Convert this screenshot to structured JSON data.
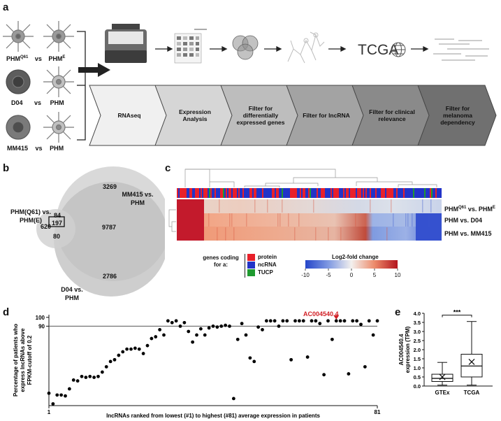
{
  "panels": {
    "a": "a",
    "b": "b",
    "c": "c",
    "d": "d",
    "e": "e"
  },
  "panel_a": {
    "comparisons": [
      {
        "left": "PHM",
        "left_sup": "Q61",
        "vs": "vs",
        "right": "PHM",
        "right_sup": "E"
      },
      {
        "left": "D04",
        "vs": "vs",
        "right": "PHM"
      },
      {
        "left": "MM415",
        "vs": "vs",
        "right": "PHM"
      }
    ],
    "tcga_label": "TCGA",
    "steps": [
      "RNAseq",
      "Expression Analysis",
      "Filter for differentially expressed genes",
      "Filter for lncRNA",
      "Filter for clinical relevance",
      "Filter for melanoma dependency"
    ],
    "step_colors": [
      "#f0f0f0",
      "#d6d6d6",
      "#bdbdbd",
      "#a3a3a3",
      "#8a8a8a",
      "#707070"
    ]
  },
  "panel_b": {
    "set_labels": {
      "phm": "PHM(Q61) vs. PHM(E)",
      "mm415": "MM415 vs. PHM",
      "d04": "D04 vs. PHM"
    },
    "regions": {
      "phm_only": "620",
      "mm415_only": "3269",
      "d04_only": "2786",
      "mm415_d04": "9787",
      "phm_mm415": "84",
      "phm_d04": "80",
      "all_three": "197"
    }
  },
  "panel_c": {
    "row_labels": [
      {
        "main": "PHM",
        "sup1": "Q61",
        "mid": " vs. PHM",
        "sup2": "E"
      },
      {
        "main": "PHM vs. D04"
      },
      {
        "main": "PHM vs. MM415"
      }
    ],
    "legend_title": "genes coding for a:",
    "categories": [
      {
        "name": "protein",
        "color": "#e8202a"
      },
      {
        "name": "ncRNA",
        "color": "#2233c8"
      },
      {
        "name": "TUCP",
        "color": "#1f9a2f"
      }
    ],
    "colorbar_title": "Log2-fold change",
    "colorbar_ticks": [
      "-10",
      "-5",
      "0",
      "5",
      "10"
    ]
  },
  "chart_data": [
    {
      "type": "scatter",
      "panel": "d",
      "xlabel": "lncRNAs ranked from lowest (#1) to highest (#81) average expression in patients",
      "ylabel": "Percentage of patients who express lncRNAs above FPKM-cutoff of 0.2",
      "x_tick_labels": [
        "1",
        "81"
      ],
      "y_tick_labels": [
        "90",
        "100"
      ],
      "reference_line": 90,
      "ylim": [
        0,
        103
      ],
      "xlim": [
        1,
        81
      ],
      "annotation": {
        "label": "AC004540.4",
        "x": 71
      },
      "x": [
        1,
        2,
        3,
        4,
        5,
        6,
        7,
        8,
        9,
        10,
        11,
        12,
        13,
        14,
        15,
        16,
        17,
        18,
        19,
        20,
        21,
        22,
        23,
        24,
        25,
        26,
        27,
        28,
        29,
        30,
        31,
        32,
        33,
        34,
        35,
        36,
        37,
        38,
        39,
        40,
        41,
        42,
        43,
        44,
        45,
        46,
        47,
        48,
        49,
        50,
        51,
        52,
        53,
        54,
        55,
        56,
        57,
        58,
        59,
        60,
        61,
        62,
        63,
        64,
        65,
        66,
        67,
        68,
        69,
        70,
        71,
        72,
        73,
        74,
        75,
        76,
        77,
        78,
        79,
        80,
        81
      ],
      "y": [
        14,
        2,
        12,
        12,
        11,
        19,
        29,
        28,
        33,
        32,
        33,
        32,
        33,
        38,
        44,
        50,
        52,
        57,
        61,
        64,
        64,
        65,
        64,
        59,
        68,
        76,
        78,
        86,
        80,
        96,
        94,
        96,
        90,
        94,
        84,
        72,
        80,
        87,
        80,
        88,
        90,
        89,
        90,
        91,
        90,
        8,
        75,
        93,
        80,
        54,
        50,
        89,
        86,
        96,
        96,
        96,
        90,
        96,
        96,
        52,
        96,
        96,
        96,
        55,
        96,
        96,
        93,
        35,
        96,
        75,
        96,
        96,
        96,
        36,
        96,
        96,
        92,
        44,
        96,
        80,
        96
      ]
    },
    {
      "type": "box",
      "panel": "e",
      "ylabel": "AC004540.4 expression (TPM)",
      "categories": [
        "GTEx",
        "TCGA"
      ],
      "y_tick_labels": [
        "0.0",
        "0.5",
        "1.0",
        "1.5",
        "2.0",
        "2.5",
        "3.0",
        "3.5",
        "4.0"
      ],
      "ylim": [
        0,
        4.0
      ],
      "boxes": [
        {
          "name": "GTEx",
          "min": 0.05,
          "q1": 0.25,
          "median": 0.42,
          "q3": 0.65,
          "max": 1.3,
          "mean": 0.5
        },
        {
          "name": "TCGA",
          "min": 0.05,
          "q1": 0.5,
          "median": 1.1,
          "q3": 1.75,
          "max": 3.55,
          "mean": 1.33
        }
      ],
      "significance": "***"
    }
  ]
}
